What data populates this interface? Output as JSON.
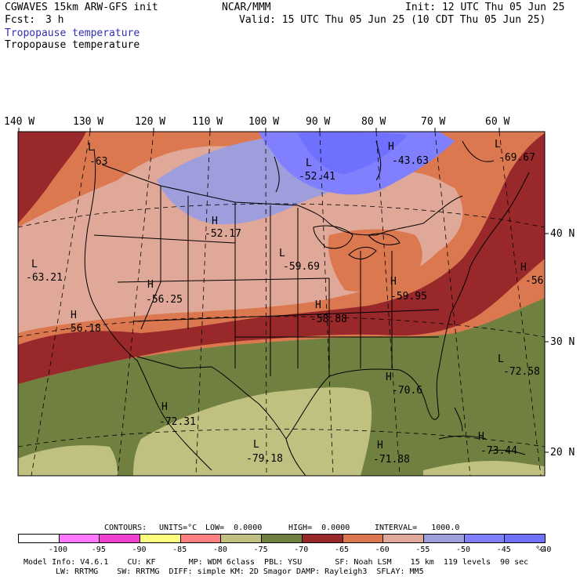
{
  "header": {
    "model_title": "CGWAVES 15km ARW-GFS init",
    "forecast_label": "Fcst:",
    "forecast_value": "3 h",
    "agency": "NCAR/MMM",
    "init_time": "Init: 12 UTC Thu 05 Jun 25",
    "valid_time": "Valid: 15 UTC Thu 05 Jun 25 (10 CDT Thu 05 Jun 25)",
    "field_title_primary": "Tropopause temperature",
    "field_title_secondary": "Tropopause temperature",
    "field_title_primary_color": "#3030b0"
  },
  "map": {
    "longitude_labels": [
      "140 W",
      "130 W",
      "120 W",
      "110 W",
      "100 W",
      "90 W",
      "80 W",
      "70 W",
      "60 W"
    ],
    "latitude_labels": [
      "40 N",
      "30 N",
      "20 N"
    ],
    "extrema": [
      {
        "letter": "L",
        "value": "-63"
      },
      {
        "letter": "L",
        "value": "-52.41"
      },
      {
        "letter": "H",
        "value": "-43.63"
      },
      {
        "letter": "L",
        "value": "-69.67"
      },
      {
        "letter": "H",
        "value": "-52.17"
      },
      {
        "letter": "L",
        "value": "-59.69"
      },
      {
        "letter": "L",
        "value": "-63.21"
      },
      {
        "letter": "H",
        "value": "-56.25"
      },
      {
        "letter": "H",
        "value": "-56"
      },
      {
        "letter": "H",
        "value": "-59.95"
      },
      {
        "letter": "H",
        "value": "-56.18"
      },
      {
        "letter": "H",
        "value": "-58.88"
      },
      {
        "letter": "L",
        "value": "-72.58"
      },
      {
        "letter": "H",
        "value": "-70.6"
      },
      {
        "letter": "H",
        "value": "-72.31"
      },
      {
        "letter": "L",
        "value": "-79.18"
      },
      {
        "letter": "H",
        "value": "-71.88"
      },
      {
        "letter": "H",
        "value": "-73.44"
      }
    ]
  },
  "contour_info": {
    "contours_label": "CONTOURS:",
    "units": "UNITS=°C",
    "low": "LOW=  0.0000",
    "high": "HIGH=  0.0000",
    "interval": "INTERVAL=   1000.0"
  },
  "legend": {
    "colors": [
      "#ffffff",
      "#ff78ff",
      "#f040d0",
      "#ffff80",
      "#ff8080",
      "#c0c080",
      "#708040",
      "#98282a",
      "#dc7850",
      "#e0a898",
      "#9e9edc",
      "#8080ff",
      "#7070ff"
    ],
    "labels": [
      "-100",
      "-95",
      "-90",
      "-85",
      "-80",
      "-75",
      "-70",
      "-65",
      "-60",
      "-55",
      "-50",
      "-45",
      "-40"
    ],
    "unit": "°C"
  },
  "model_info": {
    "line1": "Model Info: V4.6.1    CU: KF       MP: WDM 6class  PBL: YSU       SF: Noah LSM    15 km  119 levels  90 sec",
    "line2": "LW: RRTMG    SW: RRTMG  DIFF: simple KM: 2D Smagor DAMP: Rayleigh3  SFLAY: MM5"
  }
}
